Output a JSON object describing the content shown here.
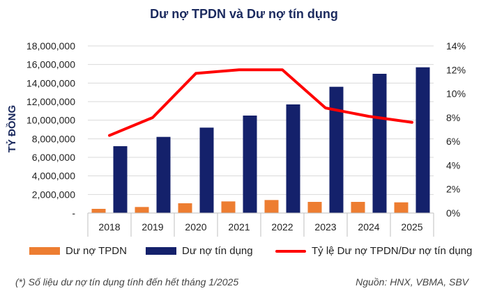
{
  "chart_data": {
    "type": "bar",
    "title": "Dư nợ TPDN và Dư nợ tín dụng",
    "ylabel": "TỶ ĐỒNG",
    "categories": [
      "2018",
      "2019",
      "2020",
      "2021",
      "2022",
      "2023",
      "2024",
      "2025"
    ],
    "ylim": [
      0,
      18000000
    ],
    "y2lim": [
      0,
      0.14
    ],
    "y_ticks": [
      "-",
      "2,000,000",
      "4,000,000",
      "6,000,000",
      "8,000,000",
      "10,000,000",
      "12,000,000",
      "14,000,000",
      "16,000,000",
      "18,000,000"
    ],
    "y2_ticks": [
      "0%",
      "2%",
      "4%",
      "6%",
      "8%",
      "10%",
      "12%",
      "14%"
    ],
    "grid": true,
    "legend_position": "bottom",
    "series": [
      {
        "name": "Dư nợ TPDN",
        "type": "bar",
        "axis": "left",
        "color": "#ed7d31",
        "values": [
          450000,
          650000,
          1050000,
          1250000,
          1400000,
          1200000,
          1200000,
          1150000
        ]
      },
      {
        "name": "Dư nợ tín dụng",
        "type": "bar",
        "axis": "left",
        "color": "#14216b",
        "values": [
          7200000,
          8200000,
          9200000,
          10500000,
          11700000,
          13600000,
          15000000,
          15700000
        ]
      },
      {
        "name": "Tỷ lệ Dư nợ TPDN/Dư nợ tín dụng",
        "type": "line",
        "axis": "right",
        "color": "#ff0000",
        "values": [
          0.065,
          0.08,
          0.117,
          0.12,
          0.12,
          0.088,
          0.081,
          0.076
        ]
      }
    ]
  },
  "footnote": "(*) Số liệu dư nợ tín dụng tính đến hết tháng 1/2025",
  "source": "Nguồn: HNX, VBMA, SBV"
}
